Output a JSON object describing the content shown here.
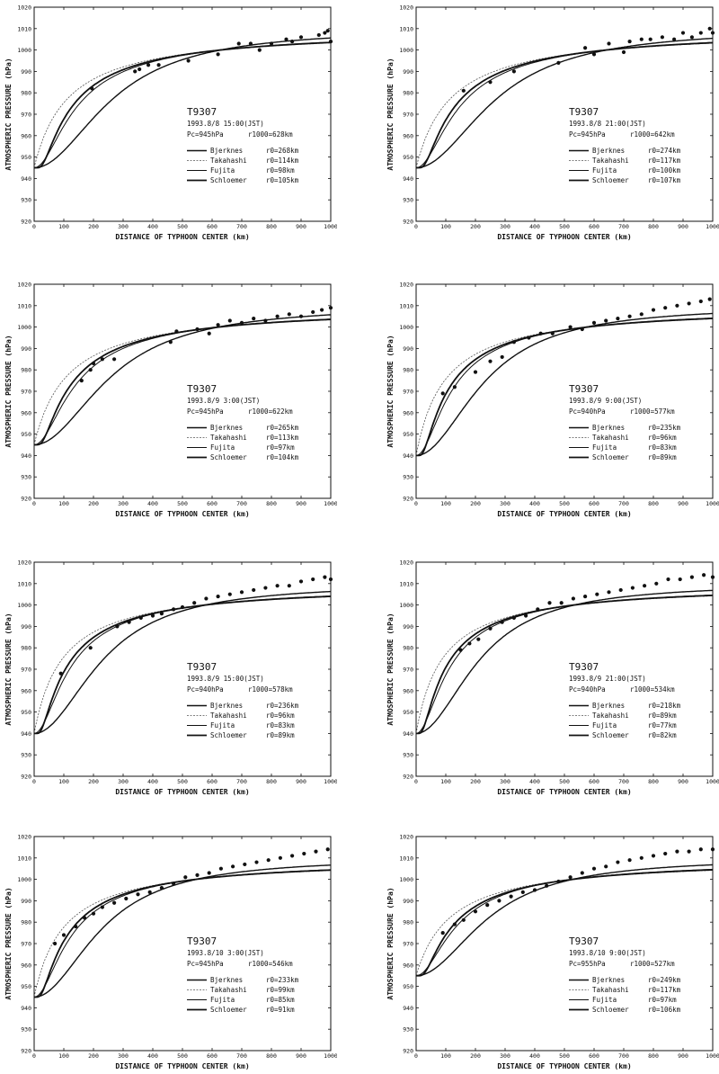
{
  "page": {
    "description": "Eight panels comparing observed atmospheric pressure with typhoon pressure-profile models for T9307"
  },
  "chart_data": [
    {
      "type": "line",
      "title": "T9307",
      "date": "1993.8/8 15:00(JST)",
      "pc_label": "Pc=945hPa",
      "r1000_label": "r1000=628km",
      "pc": 945,
      "xlabel": "DISTANCE OF TYPHOON CENTER  (km)",
      "ylabel": "ATMOSPHERIC PRESSURE  (hPa)",
      "xlim": [
        0,
        1000
      ],
      "ylim": [
        920,
        1020
      ],
      "xticks": [
        "0",
        "100",
        "200",
        "300",
        "400",
        "500",
        "600",
        "700",
        "800",
        "900",
        "1000"
      ],
      "yticks": [
        "920",
        "930",
        "940",
        "950",
        "960",
        "970",
        "980",
        "990",
        "1000",
        "1010",
        "1020"
      ],
      "series": [
        {
          "name": "Bjerknes",
          "param": "r0=268km",
          "r": 268
        },
        {
          "name": "Takahashi",
          "param": "r0=114km",
          "r": 114
        },
        {
          "name": "Fujita",
          "param": "r0=98km",
          "r": 98
        },
        {
          "name": "Schloemer",
          "param": "r0=105km",
          "r": 105
        }
      ],
      "observed": [
        [
          195,
          982
        ],
        [
          340,
          990
        ],
        [
          355,
          991
        ],
        [
          385,
          993
        ],
        [
          420,
          993
        ],
        [
          520,
          995
        ],
        [
          620,
          998
        ],
        [
          690,
          1003
        ],
        [
          730,
          1003
        ],
        [
          760,
          1000
        ],
        [
          800,
          1003
        ],
        [
          850,
          1005
        ],
        [
          870,
          1004
        ],
        [
          900,
          1006
        ],
        [
          960,
          1007
        ],
        [
          980,
          1008
        ],
        [
          990,
          1009
        ],
        [
          1000,
          1004
        ]
      ]
    },
    {
      "type": "line",
      "title": "T9307",
      "date": "1993.8/8 21:00(JST)",
      "pc_label": "Pc=945hPa",
      "r1000_label": "r1000=642km",
      "pc": 945,
      "xlabel": "DISTANCE OF TYPHOON CENTER  (km)",
      "ylabel": "ATMOSPHERIC PRESSURE  (hPa)",
      "xlim": [
        0,
        1000
      ],
      "ylim": [
        920,
        1020
      ],
      "xticks": [
        "0",
        "100",
        "200",
        "300",
        "400",
        "500",
        "600",
        "700",
        "800",
        "900",
        "1000"
      ],
      "yticks": [
        "920",
        "930",
        "940",
        "950",
        "960",
        "970",
        "980",
        "990",
        "1000",
        "1010",
        "1020"
      ],
      "series": [
        {
          "name": "Bjerknes",
          "param": "r0=274km",
          "r": 274
        },
        {
          "name": "Takahashi",
          "param": "r0=117km",
          "r": 117
        },
        {
          "name": "Fujita",
          "param": "r0=100km",
          "r": 100
        },
        {
          "name": "Schloemer",
          "param": "r0=107km",
          "r": 107
        }
      ],
      "observed": [
        [
          160,
          981
        ],
        [
          250,
          985
        ],
        [
          330,
          990
        ],
        [
          480,
          994
        ],
        [
          570,
          1001
        ],
        [
          600,
          998
        ],
        [
          650,
          1003
        ],
        [
          700,
          999
        ],
        [
          720,
          1004
        ],
        [
          760,
          1005
        ],
        [
          790,
          1005
        ],
        [
          830,
          1006
        ],
        [
          870,
          1005
        ],
        [
          900,
          1008
        ],
        [
          930,
          1006
        ],
        [
          960,
          1008
        ],
        [
          990,
          1010
        ],
        [
          1000,
          1008
        ]
      ]
    },
    {
      "type": "line",
      "title": "T9307",
      "date": "1993.8/9 3:00(JST)",
      "pc_label": "Pc=945hPa",
      "r1000_label": "r1000=622km",
      "pc": 945,
      "xlabel": "DISTANCE OF TYPHOON CENTER  (km)",
      "ylabel": "ATMOSPHERIC PRESSURE  (hPa)",
      "xlim": [
        0,
        1000
      ],
      "ylim": [
        920,
        1020
      ],
      "xticks": [
        "0",
        "100",
        "200",
        "300",
        "400",
        "500",
        "600",
        "700",
        "800",
        "900",
        "1000"
      ],
      "yticks": [
        "920",
        "930",
        "940",
        "950",
        "960",
        "970",
        "980",
        "990",
        "1000",
        "1010",
        "1020"
      ],
      "series": [
        {
          "name": "Bjerknes",
          "param": "r0=265km",
          "r": 265
        },
        {
          "name": "Takahashi",
          "param": "r0=113km",
          "r": 113
        },
        {
          "name": "Fujita",
          "param": "r0=97km",
          "r": 97
        },
        {
          "name": "Schloemer",
          "param": "r0=104km",
          "r": 104
        }
      ],
      "observed": [
        [
          160,
          975
        ],
        [
          190,
          980
        ],
        [
          200,
          983
        ],
        [
          230,
          985
        ],
        [
          270,
          985
        ],
        [
          460,
          993
        ],
        [
          480,
          998
        ],
        [
          550,
          999
        ],
        [
          590,
          997
        ],
        [
          620,
          1001
        ],
        [
          660,
          1003
        ],
        [
          700,
          1002
        ],
        [
          740,
          1004
        ],
        [
          780,
          1003
        ],
        [
          820,
          1005
        ],
        [
          860,
          1006
        ],
        [
          900,
          1005
        ],
        [
          940,
          1007
        ],
        [
          970,
          1008
        ],
        [
          1000,
          1009
        ]
      ]
    },
    {
      "type": "line",
      "title": "T9307",
      "date": "1993.8/9 9:00(JST)",
      "pc_label": "Pc=940hPa",
      "r1000_label": "r1000=577km",
      "pc": 940,
      "xlabel": "DISTANCE OF TYPHOON CENTER  (km)",
      "ylabel": "ATMOSPHERIC PRESSURE  (hPa)",
      "xlim": [
        0,
        1000
      ],
      "ylim": [
        920,
        1020
      ],
      "xticks": [
        "0",
        "100",
        "200",
        "300",
        "400",
        "500",
        "600",
        "700",
        "800",
        "900",
        "1000"
      ],
      "yticks": [
        "920",
        "930",
        "940",
        "950",
        "960",
        "970",
        "980",
        "990",
        "1000",
        "1010",
        "1020"
      ],
      "series": [
        {
          "name": "Bjerknes",
          "param": "r0=235km",
          "r": 235
        },
        {
          "name": "Takahashi",
          "param": "r0=96km",
          "r": 96
        },
        {
          "name": "Fujita",
          "param": "r0=83km",
          "r": 83
        },
        {
          "name": "Schloemer",
          "param": "r0=89km",
          "r": 89
        }
      ],
      "observed": [
        [
          90,
          969
        ],
        [
          130,
          972
        ],
        [
          200,
          979
        ],
        [
          250,
          984
        ],
        [
          290,
          986
        ],
        [
          330,
          993
        ],
        [
          380,
          995
        ],
        [
          420,
          997
        ],
        [
          460,
          997
        ],
        [
          520,
          1000
        ],
        [
          560,
          999
        ],
        [
          600,
          1002
        ],
        [
          640,
          1003
        ],
        [
          680,
          1004
        ],
        [
          720,
          1005
        ],
        [
          760,
          1006
        ],
        [
          800,
          1008
        ],
        [
          840,
          1009
        ],
        [
          880,
          1010
        ],
        [
          920,
          1011
        ],
        [
          960,
          1012
        ],
        [
          990,
          1013
        ]
      ]
    },
    {
      "type": "line",
      "title": "T9307",
      "date": "1993.8/9 15:00(JST)",
      "pc_label": "Pc=940hPa",
      "r1000_label": "r1000=578km",
      "pc": 940,
      "xlabel": "DISTANCE OF TYPHOON CENTER  (km)",
      "ylabel": "ATMOSPHERIC PRESSURE  (hPa)",
      "xlim": [
        0,
        1000
      ],
      "ylim": [
        920,
        1020
      ],
      "xticks": [
        "0",
        "100",
        "200",
        "300",
        "400",
        "500",
        "600",
        "700",
        "800",
        "900",
        "1000"
      ],
      "yticks": [
        "920",
        "930",
        "940",
        "950",
        "960",
        "970",
        "980",
        "990",
        "1000",
        "1010",
        "1020"
      ],
      "series": [
        {
          "name": "Bjerknes",
          "param": "r0=236km",
          "r": 236
        },
        {
          "name": "Takahashi",
          "param": "r0=96km",
          "r": 96
        },
        {
          "name": "Fujita",
          "param": "r0=83km",
          "r": 83
        },
        {
          "name": "Schloemer",
          "param": "r0=89km",
          "r": 89
        }
      ],
      "observed": [
        [
          90,
          968
        ],
        [
          190,
          980
        ],
        [
          280,
          990
        ],
        [
          320,
          992
        ],
        [
          360,
          994
        ],
        [
          400,
          995
        ],
        [
          430,
          996
        ],
        [
          470,
          998
        ],
        [
          500,
          999
        ],
        [
          540,
          1001
        ],
        [
          580,
          1003
        ],
        [
          620,
          1004
        ],
        [
          660,
          1005
        ],
        [
          700,
          1006
        ],
        [
          740,
          1007
        ],
        [
          780,
          1008
        ],
        [
          820,
          1009
        ],
        [
          860,
          1009
        ],
        [
          900,
          1011
        ],
        [
          940,
          1012
        ],
        [
          980,
          1013
        ],
        [
          1000,
          1012
        ]
      ]
    },
    {
      "type": "line",
      "title": "T9307",
      "date": "1993.8/9 21:00(JST)",
      "pc_label": "Pc=940hPa",
      "r1000_label": "r1000=534km",
      "pc": 940,
      "xlabel": "DISTANCE OF TYPHOON CENTER  (km)",
      "ylabel": "ATMOSPHERIC PRESSURE  (hPa)",
      "xlim": [
        0,
        1000
      ],
      "ylim": [
        920,
        1020
      ],
      "xticks": [
        "0",
        "100",
        "200",
        "300",
        "400",
        "500",
        "600",
        "700",
        "800",
        "900",
        "1000"
      ],
      "yticks": [
        "920",
        "930",
        "940",
        "950",
        "960",
        "970",
        "980",
        "990",
        "1000",
        "1010",
        "1020"
      ],
      "series": [
        {
          "name": "Bjerknes",
          "param": "r0=218km",
          "r": 218
        },
        {
          "name": "Takahashi",
          "param": "r0=89km",
          "r": 89
        },
        {
          "name": "Fujita",
          "param": "r0=77km",
          "r": 77
        },
        {
          "name": "Schloemer",
          "param": "r0=82km",
          "r": 82
        }
      ],
      "observed": [
        [
          150,
          979
        ],
        [
          180,
          982
        ],
        [
          210,
          984
        ],
        [
          250,
          989
        ],
        [
          290,
          992
        ],
        [
          330,
          994
        ],
        [
          370,
          995
        ],
        [
          410,
          998
        ],
        [
          450,
          1001
        ],
        [
          490,
          1001
        ],
        [
          530,
          1003
        ],
        [
          570,
          1004
        ],
        [
          610,
          1005
        ],
        [
          650,
          1006
        ],
        [
          690,
          1007
        ],
        [
          730,
          1008
        ],
        [
          770,
          1009
        ],
        [
          810,
          1010
        ],
        [
          850,
          1012
        ],
        [
          890,
          1012
        ],
        [
          930,
          1013
        ],
        [
          970,
          1014
        ],
        [
          1000,
          1013
        ]
      ]
    },
    {
      "type": "line",
      "title": "T9307",
      "date": "1993.8/10 3:00(JST)",
      "pc_label": "Pc=945hPa",
      "r1000_label": "r1000=546km",
      "pc": 945,
      "xlabel": "DISTANCE OF TYPHOON CENTER  (km)",
      "ylabel": "ATMOSPHERIC PRESSURE  (hPa)",
      "xlim": [
        0,
        1000
      ],
      "ylim": [
        920,
        1020
      ],
      "xticks": [
        "0",
        "100",
        "200",
        "300",
        "400",
        "500",
        "600",
        "700",
        "800",
        "900",
        "1000"
      ],
      "yticks": [
        "920",
        "930",
        "940",
        "950",
        "960",
        "970",
        "980",
        "990",
        "1000",
        "1010",
        "1020"
      ],
      "series": [
        {
          "name": "Bjerknes",
          "param": "r0=233km",
          "r": 233
        },
        {
          "name": "Takahashi",
          "param": "r0=99km",
          "r": 99
        },
        {
          "name": "Fujita",
          "param": "r0=85km",
          "r": 85
        },
        {
          "name": "Schloemer",
          "param": "r0=91km",
          "r": 91
        }
      ],
      "observed": [
        [
          70,
          970
        ],
        [
          100,
          974
        ],
        [
          140,
          978
        ],
        [
          170,
          982
        ],
        [
          200,
          984
        ],
        [
          230,
          987
        ],
        [
          270,
          989
        ],
        [
          310,
          991
        ],
        [
          350,
          993
        ],
        [
          390,
          994
        ],
        [
          430,
          996
        ],
        [
          470,
          998
        ],
        [
          510,
          1001
        ],
        [
          550,
          1002
        ],
        [
          590,
          1003
        ],
        [
          630,
          1005
        ],
        [
          670,
          1006
        ],
        [
          710,
          1007
        ],
        [
          750,
          1008
        ],
        [
          790,
          1009
        ],
        [
          830,
          1010
        ],
        [
          870,
          1011
        ],
        [
          910,
          1012
        ],
        [
          950,
          1013
        ],
        [
          990,
          1014
        ]
      ]
    },
    {
      "type": "line",
      "title": "T9307",
      "date": "1993.8/10 9:00(JST)",
      "pc_label": "Pc=955hPa",
      "r1000_label": "r1000=527km",
      "pc": 955,
      "xlabel": "DISTANCE OF TYPHOON CENTER  (km)",
      "ylabel": "ATMOSPHERIC PRESSURE  (hPa)",
      "xlim": [
        0,
        1000
      ],
      "ylim": [
        920,
        1020
      ],
      "xticks": [
        "0",
        "100",
        "200",
        "300",
        "400",
        "500",
        "600",
        "700",
        "800",
        "900",
        "1000"
      ],
      "yticks": [
        "920",
        "930",
        "940",
        "950",
        "960",
        "970",
        "980",
        "990",
        "1000",
        "1010",
        "1020"
      ],
      "series": [
        {
          "name": "Bjerknes",
          "param": "r0=249km",
          "r": 249
        },
        {
          "name": "Takahashi",
          "param": "r0=117km",
          "r": 117
        },
        {
          "name": "Fujita",
          "param": "r0=97km",
          "r": 97
        },
        {
          "name": "Schloemer",
          "param": "r0=106km",
          "r": 106
        }
      ],
      "observed": [
        [
          90,
          975
        ],
        [
          130,
          979
        ],
        [
          160,
          981
        ],
        [
          200,
          985
        ],
        [
          240,
          988
        ],
        [
          280,
          990
        ],
        [
          320,
          992
        ],
        [
          360,
          994
        ],
        [
          400,
          995
        ],
        [
          440,
          997
        ],
        [
          480,
          999
        ],
        [
          520,
          1001
        ],
        [
          560,
          1003
        ],
        [
          600,
          1005
        ],
        [
          640,
          1006
        ],
        [
          680,
          1008
        ],
        [
          720,
          1009
        ],
        [
          760,
          1010
        ],
        [
          800,
          1011
        ],
        [
          840,
          1012
        ],
        [
          880,
          1013
        ],
        [
          920,
          1013
        ],
        [
          960,
          1014
        ],
        [
          1000,
          1014
        ]
      ]
    }
  ]
}
